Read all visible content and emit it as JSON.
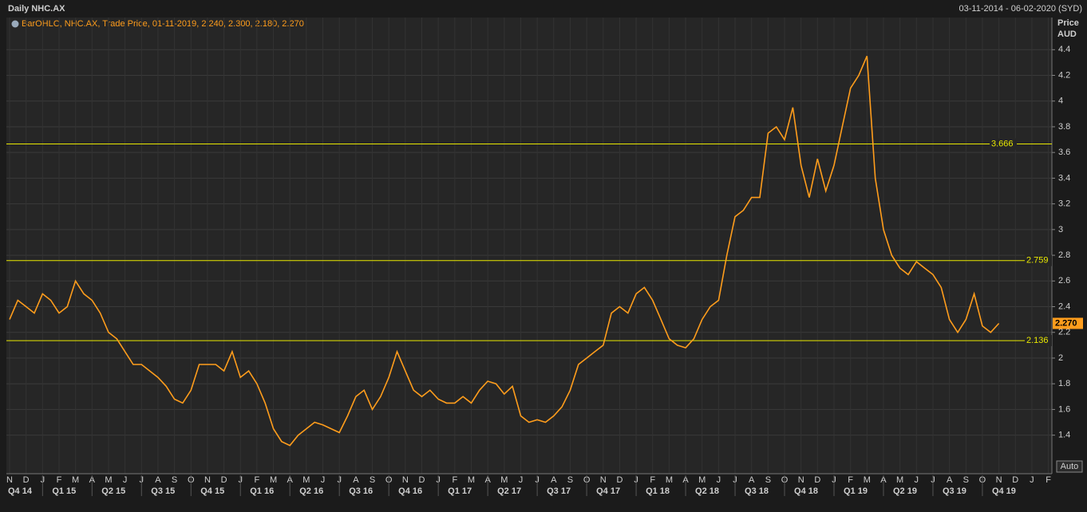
{
  "chart_data": {
    "type": "line",
    "title": "Daily NHC.AX",
    "date_range": "03-11-2014 - 06-02-2020 (SYD)",
    "legend": "BarOHLC, NHC.AX, Trade Price, 01-11-2019, 2.240, 2.300, 2.180, 2.270",
    "y_label": "Price",
    "y_unit": "AUD",
    "auto_label": "Auto",
    "color": "#ff9d1c",
    "x": [
      "2014-11",
      "2014-11",
      "2014-12",
      "2014-12",
      "2015-01",
      "2015-01",
      "2015-02",
      "2015-02",
      "2015-03",
      "2015-03",
      "2015-04",
      "2015-04",
      "2015-05",
      "2015-05",
      "2015-06",
      "2015-06",
      "2015-07",
      "2015-07",
      "2015-08",
      "2015-08",
      "2015-09",
      "2015-09",
      "2015-10",
      "2015-10",
      "2015-11",
      "2015-11",
      "2015-12",
      "2015-12",
      "2016-01",
      "2016-01",
      "2016-02",
      "2016-02",
      "2016-03",
      "2016-03",
      "2016-04",
      "2016-04",
      "2016-05",
      "2016-05",
      "2016-06",
      "2016-06",
      "2016-07",
      "2016-07",
      "2016-08",
      "2016-08",
      "2016-09",
      "2016-09",
      "2016-10",
      "2016-10",
      "2016-11",
      "2016-11",
      "2016-12",
      "2016-12",
      "2017-01",
      "2017-01",
      "2017-02",
      "2017-02",
      "2017-03",
      "2017-03",
      "2017-04",
      "2017-04",
      "2017-05",
      "2017-05",
      "2017-06",
      "2017-06",
      "2017-07",
      "2017-07",
      "2017-08",
      "2017-08",
      "2017-09",
      "2017-09",
      "2017-10",
      "2017-10",
      "2017-11",
      "2017-11",
      "2017-12",
      "2017-12",
      "2018-01",
      "2018-01",
      "2018-02",
      "2018-02",
      "2018-03",
      "2018-03",
      "2018-04",
      "2018-04",
      "2018-05",
      "2018-05",
      "2018-06",
      "2018-06",
      "2018-07",
      "2018-07",
      "2018-08",
      "2018-08",
      "2018-09",
      "2018-09",
      "2018-10",
      "2018-10",
      "2018-11",
      "2018-11",
      "2018-12",
      "2018-12",
      "2019-01",
      "2019-01",
      "2019-02",
      "2019-02",
      "2019-03",
      "2019-03",
      "2019-04",
      "2019-04",
      "2019-05",
      "2019-05",
      "2019-06",
      "2019-06",
      "2019-07",
      "2019-07",
      "2019-08",
      "2019-08",
      "2019-09",
      "2019-09",
      "2019-10",
      "2019-10",
      "2019-11"
    ],
    "values": [
      2.3,
      2.45,
      2.4,
      2.35,
      2.5,
      2.45,
      2.35,
      2.4,
      2.6,
      2.5,
      2.45,
      2.35,
      2.2,
      2.15,
      2.05,
      1.95,
      1.95,
      1.9,
      1.85,
      1.78,
      1.68,
      1.65,
      1.75,
      1.95,
      1.95,
      1.95,
      1.9,
      2.05,
      1.85,
      1.9,
      1.8,
      1.65,
      1.45,
      1.35,
      1.32,
      1.4,
      1.45,
      1.5,
      1.48,
      1.45,
      1.42,
      1.55,
      1.7,
      1.75,
      1.6,
      1.7,
      1.85,
      2.05,
      1.9,
      1.75,
      1.7,
      1.75,
      1.68,
      1.65,
      1.65,
      1.7,
      1.65,
      1.75,
      1.82,
      1.8,
      1.72,
      1.78,
      1.55,
      1.5,
      1.52,
      1.5,
      1.55,
      1.62,
      1.75,
      1.95,
      2.0,
      2.05,
      2.1,
      2.35,
      2.4,
      2.35,
      2.5,
      2.55,
      2.45,
      2.3,
      2.15,
      2.1,
      2.08,
      2.15,
      2.3,
      2.4,
      2.45,
      2.8,
      3.1,
      3.15,
      3.25,
      3.25,
      3.75,
      3.8,
      3.7,
      3.95,
      3.5,
      3.25,
      3.55,
      3.3,
      3.5,
      3.8,
      4.1,
      4.2,
      4.35,
      3.4,
      3.0,
      2.8,
      2.7,
      2.65,
      2.75,
      2.7,
      2.65,
      2.55,
      2.3,
      2.2,
      2.3,
      2.5,
      2.25,
      2.2,
      2.27
    ],
    "months": [
      "N",
      "D",
      "J",
      "F",
      "M",
      "A",
      "M",
      "J",
      "J",
      "A",
      "S",
      "O",
      "N",
      "D",
      "J",
      "F",
      "M",
      "A",
      "M",
      "J",
      "J",
      "A",
      "S",
      "O",
      "N",
      "D",
      "J",
      "F",
      "M",
      "A",
      "M",
      "J",
      "J",
      "A",
      "S",
      "O",
      "N",
      "D",
      "J",
      "F",
      "M",
      "A",
      "M",
      "J",
      "J",
      "A",
      "S",
      "O",
      "N",
      "D",
      "J",
      "F",
      "M",
      "A",
      "M",
      "J",
      "J",
      "A",
      "S",
      "O",
      "N",
      "D",
      "J",
      "F"
    ],
    "quarters": [
      "Q4 14",
      "Q1 15",
      "Q2 15",
      "Q3 15",
      "Q4 15",
      "Q1 16",
      "Q2 16",
      "Q3 16",
      "Q4 16",
      "Q1 17",
      "Q2 17",
      "Q3 17",
      "Q4 17",
      "Q1 18",
      "Q2 18",
      "Q3 18",
      "Q4 18",
      "Q1 19",
      "Q2 19",
      "Q3 19",
      "Q4 19"
    ],
    "ylim": [
      1.1,
      4.65
    ],
    "yticks": [
      1.4,
      1.6,
      1.8,
      2,
      2.2,
      2.4,
      2.6,
      2.8,
      3,
      3.2,
      3.4,
      3.6,
      3.8,
      4,
      4.2,
      4.4
    ],
    "hlines": [
      3.666,
      2.759,
      2.136
    ],
    "hline_color": "#e8e800",
    "last_value": {
      "value": 2.27,
      "label": "2.270"
    },
    "grid": true
  }
}
